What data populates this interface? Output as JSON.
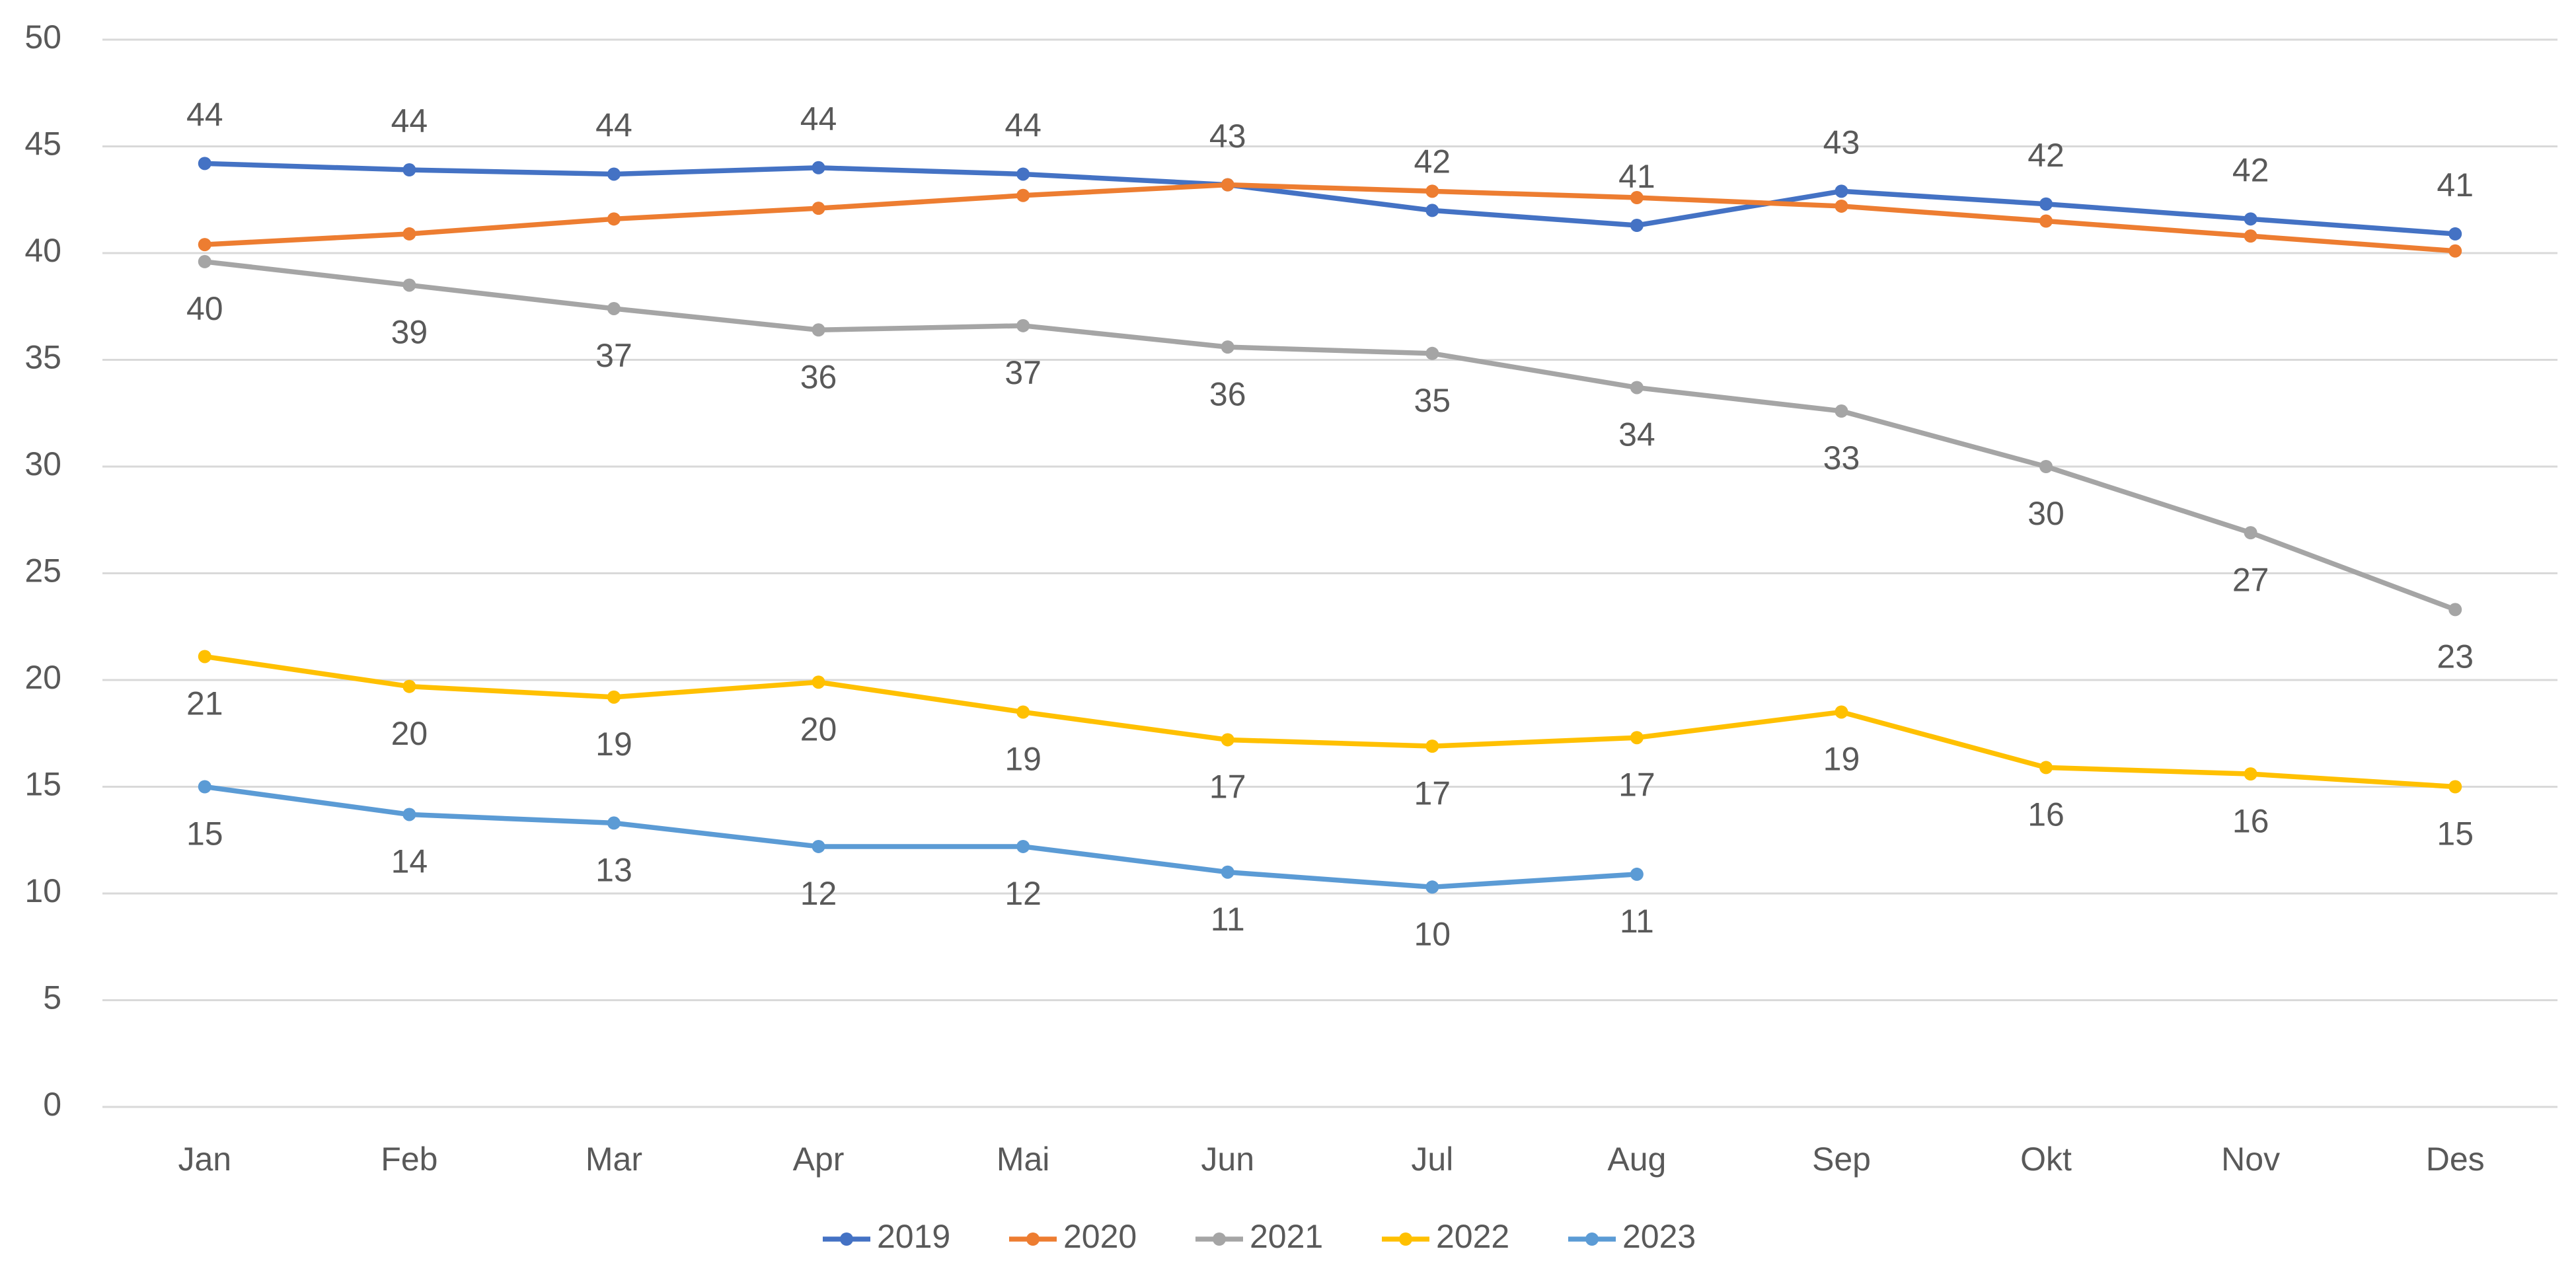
{
  "chart_data": {
    "type": "line",
    "categories": [
      "Jan",
      "Feb",
      "Mar",
      "Apr",
      "Mai",
      "Jun",
      "Jul",
      "Aug",
      "Sep",
      "Okt",
      "Nov",
      "Des"
    ],
    "ylim": [
      0,
      50
    ],
    "yticks": [
      0,
      5,
      10,
      15,
      20,
      25,
      30,
      35,
      40,
      45,
      50
    ],
    "grid": true,
    "legend": "bottom",
    "series": [
      {
        "name": "2019",
        "color": "#4472c4",
        "values": [
          44.2,
          43.9,
          43.7,
          44.0,
          43.7,
          43.2,
          42.0,
          41.3,
          42.9,
          42.3,
          41.6,
          40.9
        ],
        "value_labels": [
          "44",
          "44",
          "44",
          "44",
          "44",
          "43",
          "42",
          "41",
          "43",
          "42",
          "42",
          "41"
        ]
      },
      {
        "name": "2020",
        "color": "#ed7d31",
        "values": [
          40.4,
          40.9,
          41.6,
          42.1,
          42.7,
          43.2,
          42.9,
          42.6,
          42.2,
          41.5,
          40.8,
          40.1
        ]
      },
      {
        "name": "2021",
        "color": "#a5a5a5",
        "values": [
          39.6,
          38.5,
          37.4,
          36.4,
          36.6,
          35.6,
          35.3,
          33.7,
          32.6,
          30.0,
          26.9,
          23.3
        ],
        "value_labels": [
          "40",
          "39",
          "37",
          "36",
          "37",
          "36",
          "35",
          "34",
          "33",
          "30",
          "27",
          "23"
        ]
      },
      {
        "name": "2022",
        "color": "#ffc000",
        "values": [
          21.1,
          19.7,
          19.2,
          19.9,
          18.5,
          17.2,
          16.9,
          17.3,
          18.5,
          15.9,
          15.6,
          15.0
        ],
        "value_labels": [
          "21",
          "20",
          "19",
          "20",
          "19",
          "17",
          "17",
          "17",
          "19",
          "16",
          "16",
          "15"
        ]
      },
      {
        "name": "2023",
        "color": "#5b9bd5",
        "values": [
          15.0,
          13.7,
          13.3,
          12.2,
          12.2,
          11.0,
          10.3,
          10.9,
          null,
          null,
          null,
          null
        ],
        "value_labels": [
          "15",
          "14",
          "13",
          "12",
          "12",
          "11",
          "10",
          "11",
          null,
          null,
          null,
          null
        ]
      }
    ]
  }
}
